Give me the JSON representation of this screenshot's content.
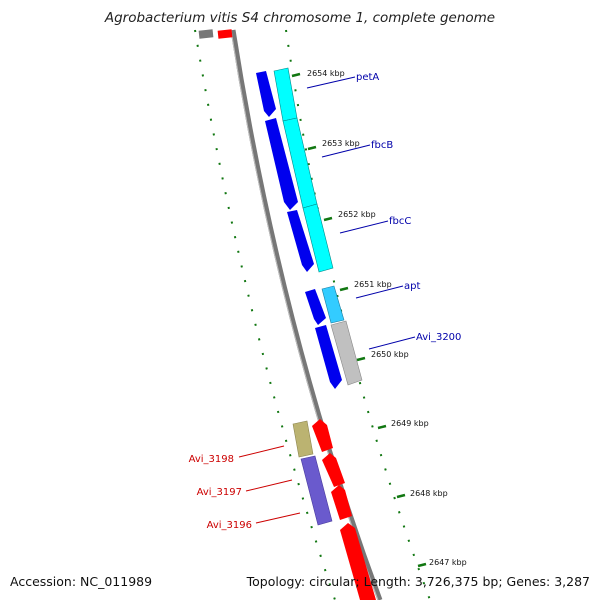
{
  "title": "Agrobacterium vitis S4 chromosome 1, complete genome",
  "footer": {
    "accession": "Accession: NC_011989",
    "topology": "Topology: circular; Length: 3,726,375 bp; Genes: 3,287"
  },
  "colors": {
    "backbone": "#777777",
    "tick": "#117711",
    "plus_strand_label": "#0000aa",
    "minus_strand_label": "#cc0000"
  },
  "scale_labels": [
    "2654 kbp",
    "2653 kbp",
    "2652 kbp",
    "2651 kbp",
    "2650 kbp",
    "2649 kbp",
    "2648 kbp",
    "2647 kbp"
  ],
  "gene_labels": {
    "plus": [
      "petA",
      "fbcB",
      "fbcC",
      "apt",
      "Avi_3200"
    ],
    "minus": [
      "Avi_3198",
      "Avi_3197",
      "Avi_3196"
    ]
  },
  "gene_colors": {
    "blue": "#0000ee",
    "cyan": "#00ffff",
    "lightblue": "#33ccff",
    "gray": "#c0c0c0",
    "red": "#ff0000",
    "olive": "#bbb371",
    "slate": "#6a5acd"
  }
}
